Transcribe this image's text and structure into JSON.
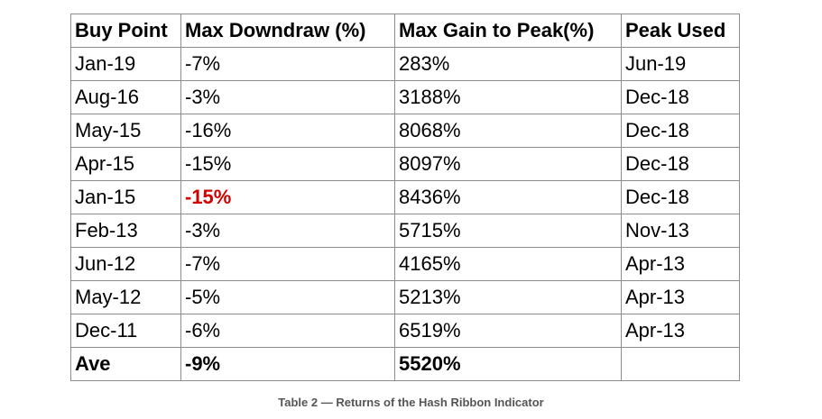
{
  "table": {
    "headers": [
      "Buy Point",
      "Max Downdraw (%)",
      "Max Gain to Peak(%)",
      "Peak Used"
    ],
    "rows": [
      {
        "buy_point": "Jan-19",
        "max_downdraw": "-7%",
        "max_gain": "283%",
        "peak_used": "Jun-19"
      },
      {
        "buy_point": "Aug-16",
        "max_downdraw": "-3%",
        "max_gain": "3188%",
        "peak_used": "Dec-18"
      },
      {
        "buy_point": "May-15",
        "max_downdraw": "-16%",
        "max_gain": "8068%",
        "peak_used": "Dec-18"
      },
      {
        "buy_point": "Apr-15",
        "max_downdraw": "-15%",
        "max_gain": "8097%",
        "peak_used": "Dec-18"
      },
      {
        "buy_point": "Jan-15",
        "max_downdraw": "-15%",
        "max_gain": "8436%",
        "peak_used": "Dec-18"
      },
      {
        "buy_point": "Feb-13",
        "max_downdraw": "-3%",
        "max_gain": "5715%",
        "peak_used": "Nov-13"
      },
      {
        "buy_point": "Jun-12",
        "max_downdraw": "-7%",
        "max_gain": "4165%",
        "peak_used": "Apr-13"
      },
      {
        "buy_point": "May-12",
        "max_downdraw": "-5%",
        "max_gain": "5213%",
        "peak_used": "Apr-13"
      },
      {
        "buy_point": "Dec-11",
        "max_downdraw": "-6%",
        "max_gain": "6519%",
        "peak_used": "Apr-13"
      }
    ],
    "average": {
      "label": "Ave",
      "max_downdraw": "-9%",
      "max_gain": "5520%",
      "peak_used": ""
    }
  },
  "caption": "Table 2 — Returns of the Hash Ribbon Indicator",
  "colors": {
    "highlight_negative": "#d00000",
    "border": "#8c8c8c",
    "caption_text": "#555555"
  }
}
